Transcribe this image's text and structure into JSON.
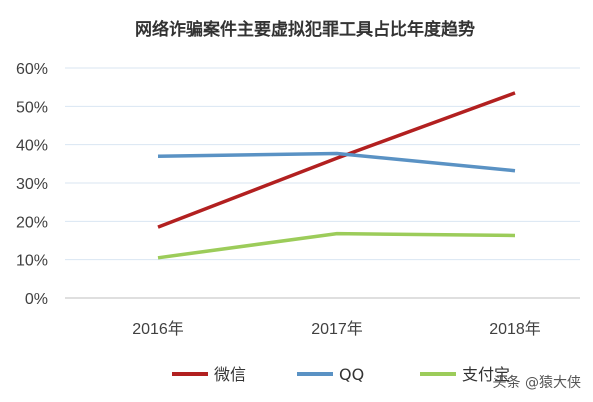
{
  "chart_data": {
    "type": "line",
    "title": "网络诈骗案件主要虚拟犯罪工具占比年度趋势",
    "categories": [
      "2016年",
      "2017年",
      "2018年"
    ],
    "series": [
      {
        "name": "微信",
        "values": [
          18.5,
          36.5,
          53.5
        ],
        "color": "#b22020"
      },
      {
        "name": "QQ",
        "values": [
          37,
          37.7,
          33.2
        ],
        "color": "#5a92c4"
      },
      {
        "name": "支付宝",
        "values": [
          10.5,
          16.8,
          16.3
        ],
        "color": "#9ccc5a"
      }
    ],
    "yticks": [
      "0%",
      "10%",
      "20%",
      "30%",
      "40%",
      "50%",
      "60%"
    ],
    "ylim": [
      0,
      60
    ],
    "grid": true,
    "legend": "bottom"
  },
  "watermark": "头条 @猿大侠"
}
